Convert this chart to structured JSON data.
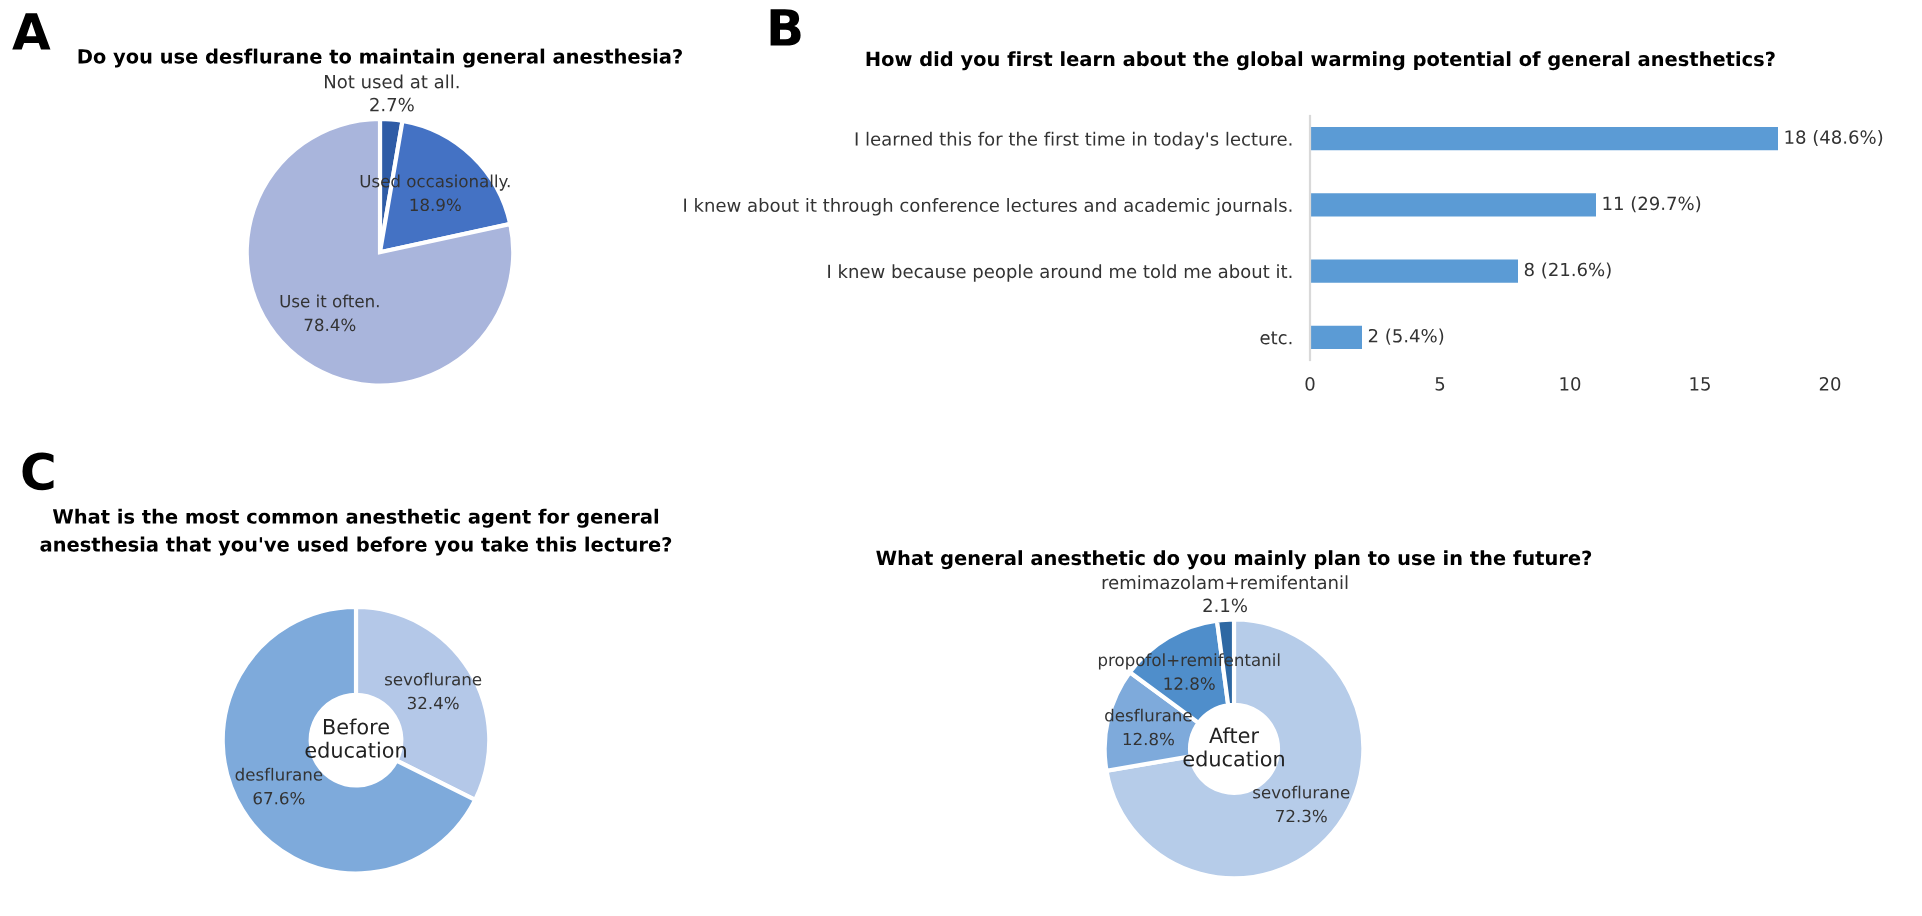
{
  "chart_data": [
    {
      "type": "pie",
      "title": "Do you use desflurane to maintain general anesthesia?",
      "annotations": [
        "A"
      ],
      "categories": [
        "Not used at all.",
        "Used occasionally.",
        "Use it often."
      ],
      "values": [
        2.7,
        18.9,
        78.4
      ],
      "value_labels": [
        "2.7%",
        "18.9%",
        "78.4%"
      ],
      "colors": [
        "#2f5ca6",
        "#4472c4",
        "#a9b5dc"
      ]
    },
    {
      "type": "bar",
      "orientation": "horizontal",
      "title": "How did you first learn about the global warming potential of general anesthetics?",
      "annotations": [
        "B"
      ],
      "categories": [
        "I learned this for the first time in today's lecture.",
        "I knew about it through conference lectures and academic journals.",
        "I knew because people around me told me about it.",
        "etc."
      ],
      "values": [
        18,
        11,
        8,
        2
      ],
      "value_labels": [
        "18 (48.6%)",
        "11 (29.7%)",
        "8 (21.6%)",
        "2 (5.4%)"
      ],
      "color": "#5b9bd5",
      "xlim": [
        0,
        20
      ],
      "xticks": [
        0,
        5,
        10,
        15,
        20
      ],
      "grid": false
    },
    {
      "type": "donut",
      "title": "What is the most common anesthetic agent for general\nanesthesia that you've used before you take this lecture?",
      "annotations": [
        "C",
        "Before\neducation"
      ],
      "categories": [
        "sevoflurane",
        "desflurane"
      ],
      "values": [
        32.4,
        67.6
      ],
      "value_labels": [
        "32.4%",
        "67.6%"
      ],
      "colors": [
        "#b4c8e8",
        "#7eaadb"
      ]
    },
    {
      "type": "donut",
      "title": "What general anesthetic do you mainly plan to use in the future?",
      "annotations": [
        "After\neducation"
      ],
      "categories": [
        "sevoflurane",
        "desflurane",
        "propofol+remifentanil",
        "remimazolam+remifentanil"
      ],
      "values": [
        72.3,
        12.8,
        12.8,
        2.1
      ],
      "value_labels": [
        "72.3%",
        "12.8%",
        "12.8%",
        "2.1%"
      ],
      "colors": [
        "#b6cce9",
        "#7eaadb",
        "#4f8ecb",
        "#2e68a3"
      ]
    }
  ]
}
